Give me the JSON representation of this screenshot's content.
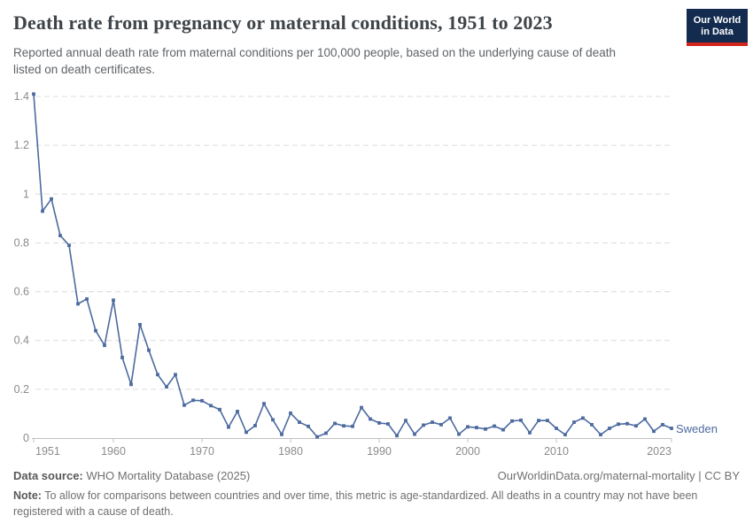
{
  "header": {
    "title": "Death rate from pregnancy or maternal conditions, 1951 to 2023",
    "subtitle": "Reported annual death rate from maternal conditions per 100,000 people, based on the underlying cause of death listed on death certificates.",
    "logo_line1": "Our World",
    "logo_line2": "in Data"
  },
  "footer": {
    "source_label": "Data source:",
    "source_text": " WHO Mortality Database (2025)",
    "link_text": "OurWorldinData.org/maternal-mortality | CC BY",
    "note_label": "Note:",
    "note_text": " To allow for comparisons between countries and over time, this metric is age-standardized. All deaths in a country may not have been registered with a cause of death."
  },
  "colors": {
    "line": "#4c6a9f",
    "grid": "#dcdcdc",
    "axis": "#c0c0c0",
    "axis_label": "#8b8b8b",
    "logo_bg": "#122b4f",
    "logo_stripe": "#d1241a"
  },
  "chart_data": {
    "type": "line",
    "title": "Death rate from pregnancy or maternal conditions, 1951 to 2023",
    "xlabel": "",
    "ylabel": "",
    "xlim": [
      1951,
      2023
    ],
    "ylim": [
      0,
      1.4
    ],
    "grid": "horizontal-dashed",
    "legend_position": "end-of-line-label",
    "x_ticks": [
      1951,
      1960,
      1970,
      1980,
      1990,
      2000,
      2010,
      2023
    ],
    "y_ticks": [
      0,
      0.2,
      0.4,
      0.6,
      0.8,
      1,
      1.2,
      1.4
    ],
    "y_tick_labels": [
      "0",
      "0.2",
      "0.4",
      "0.6",
      "0.8",
      "1",
      "1.2",
      "1.4"
    ],
    "series": [
      {
        "name": "Sweden",
        "color": "#4c6a9f",
        "x": [
          1951,
          1952,
          1953,
          1954,
          1955,
          1956,
          1957,
          1958,
          1959,
          1960,
          1961,
          1962,
          1963,
          1964,
          1965,
          1966,
          1967,
          1968,
          1969,
          1970,
          1971,
          1972,
          1973,
          1974,
          1975,
          1976,
          1977,
          1978,
          1979,
          1980,
          1981,
          1982,
          1983,
          1984,
          1985,
          1986,
          1987,
          1988,
          1989,
          1990,
          1991,
          1992,
          1993,
          1994,
          1995,
          1996,
          1997,
          1998,
          1999,
          2000,
          2001,
          2002,
          2003,
          2004,
          2005,
          2006,
          2007,
          2008,
          2009,
          2010,
          2011,
          2012,
          2013,
          2014,
          2015,
          2016,
          2017,
          2018,
          2019,
          2020,
          2021,
          2022,
          2023
        ],
        "values": [
          1.41,
          0.93,
          0.98,
          0.83,
          0.79,
          0.55,
          0.57,
          0.44,
          0.38,
          0.565,
          0.33,
          0.22,
          0.465,
          0.36,
          0.26,
          0.21,
          0.26,
          0.135,
          0.155,
          0.153,
          0.133,
          0.117,
          0.045,
          0.109,
          0.024,
          0.051,
          0.141,
          0.075,
          0.015,
          0.102,
          0.065,
          0.048,
          0.005,
          0.02,
          0.06,
          0.05,
          0.048,
          0.125,
          0.078,
          0.062,
          0.058,
          0.01,
          0.072,
          0.016,
          0.053,
          0.065,
          0.055,
          0.082,
          0.016,
          0.046,
          0.043,
          0.037,
          0.049,
          0.034,
          0.07,
          0.073,
          0.022,
          0.072,
          0.072,
          0.04,
          0.014,
          0.065,
          0.082,
          0.055,
          0.014,
          0.04,
          0.057,
          0.059,
          0.05,
          0.078,
          0.028,
          0.055,
          0.04
        ]
      }
    ]
  }
}
